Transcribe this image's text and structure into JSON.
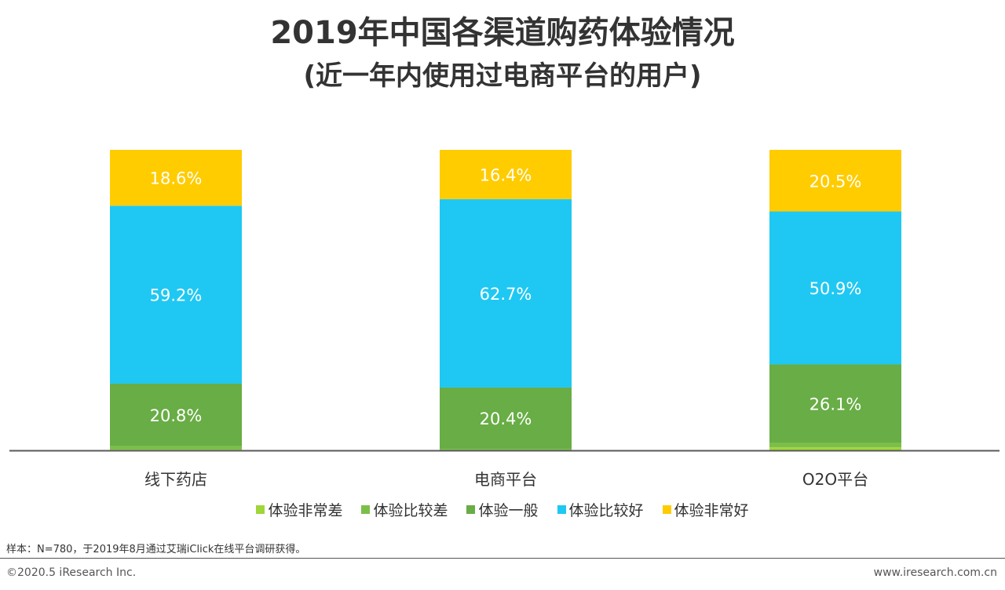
{
  "title": "2019年中国各渠道购药体验情况",
  "subtitle": "(近一年内使用过电商平台的用户)",
  "note": "样本：N=780，于2019年8月通过艾瑞iClick在线平台调研获得。",
  "footer": {
    "copyright": "©2020.5 iResearch Inc.",
    "website": "www.iresearch.com.cn"
  },
  "legend_items": [
    {
      "label": "体验非常差",
      "color": "#9fd63a"
    },
    {
      "label": "体验比较差",
      "color": "#7cbf48"
    },
    {
      "label": "体验一般",
      "color": "#68ad45"
    },
    {
      "label": "体验比较好",
      "color": "#1fc8f2"
    },
    {
      "label": "体验非常好",
      "color": "#ffcc00"
    }
  ],
  "chart_data": {
    "type": "bar",
    "stacked": true,
    "categories": [
      "线下药店",
      "电商平台",
      "O2O平台"
    ],
    "series": [
      {
        "name": "体验非常差",
        "color": "#9fd63a",
        "values": [
          0.2,
          0.1,
          1.0
        ],
        "labels": [
          "",
          "",
          ""
        ]
      },
      {
        "name": "体验比较差",
        "color": "#7cbf48",
        "values": [
          1.2,
          0.4,
          1.5
        ],
        "labels": [
          "",
          "",
          ""
        ]
      },
      {
        "name": "体验一般",
        "color": "#68ad45",
        "values": [
          20.8,
          20.4,
          26.1
        ],
        "labels": [
          "20.8%",
          "20.4%",
          "26.1%"
        ]
      },
      {
        "name": "体验比较好",
        "color": "#1fc8f2",
        "values": [
          59.2,
          62.7,
          50.9
        ],
        "labels": [
          "59.2%",
          "62.7%",
          "50.9%"
        ]
      },
      {
        "name": "体验非常好",
        "color": "#ffcc00",
        "values": [
          18.6,
          16.4,
          20.5
        ],
        "labels": [
          "18.6%",
          "16.4%",
          "20.5%"
        ]
      }
    ],
    "ylim": [
      0,
      100
    ],
    "grid": false,
    "legend_position": "bottom"
  }
}
